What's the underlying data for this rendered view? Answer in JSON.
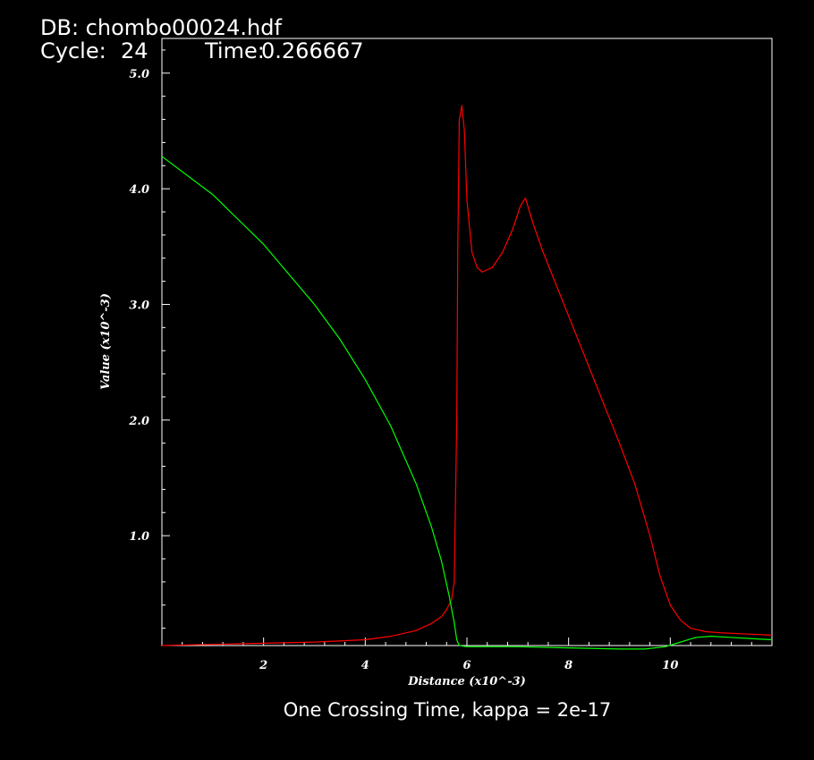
{
  "header": {
    "db_line": "DB: chombo00024.hdf",
    "cycle_label": "Cycle:",
    "cycle_value": "24",
    "time_label": "Time:",
    "time_value": "0.266667"
  },
  "caption": "One Crossing Time, kappa = 2e-17",
  "colors": {
    "background": "#000000",
    "axes": "#ffffff",
    "series_red": "#ff0000",
    "series_green": "#00ff00"
  },
  "chart_data": {
    "type": "line",
    "title": "",
    "xlabel": "Distance (x10^-3)",
    "ylabel": "Value (x10^-3)",
    "xlim": [
      0,
      12
    ],
    "ylim": [
      0.05,
      5.3
    ],
    "x_ticks": [
      2,
      4,
      6,
      8,
      10
    ],
    "x_tick_labels": [
      "2",
      "4",
      "6",
      "8",
      "10"
    ],
    "y_ticks": [
      1.0,
      2.0,
      3.0,
      4.0,
      5.0
    ],
    "y_tick_labels": [
      "1.0",
      "2.0",
      "3.0",
      "4.0",
      "5.0"
    ],
    "grid": false,
    "series": [
      {
        "color": "#ff0000",
        "x": [
          0.0,
          1.0,
          2.0,
          3.0,
          4.0,
          4.5,
          5.0,
          5.3,
          5.5,
          5.6,
          5.7,
          5.75,
          5.8,
          5.82,
          5.85,
          5.9,
          5.95,
          6.0,
          6.1,
          6.2,
          6.3,
          6.5,
          6.7,
          6.9,
          7.05,
          7.15,
          7.3,
          7.5,
          8.0,
          8.5,
          9.0,
          9.3,
          9.6,
          9.8,
          10.0,
          10.2,
          10.4,
          10.7,
          11.0,
          11.5,
          12.0
        ],
        "y": [
          0.05,
          0.06,
          0.07,
          0.08,
          0.1,
          0.13,
          0.18,
          0.24,
          0.3,
          0.36,
          0.45,
          0.6,
          2.0,
          3.5,
          4.6,
          4.72,
          4.5,
          3.9,
          3.45,
          3.32,
          3.28,
          3.32,
          3.45,
          3.65,
          3.85,
          3.92,
          3.7,
          3.45,
          2.9,
          2.35,
          1.8,
          1.45,
          1.0,
          0.65,
          0.4,
          0.27,
          0.2,
          0.17,
          0.16,
          0.15,
          0.14
        ]
      },
      {
        "color": "#00ff00",
        "x": [
          0.0,
          1.0,
          2.0,
          3.0,
          3.5,
          4.0,
          4.5,
          5.0,
          5.3,
          5.5,
          5.65,
          5.75,
          5.8,
          5.85,
          6.0,
          7.0,
          8.0,
          9.0,
          9.5,
          9.9,
          10.2,
          10.5,
          10.8,
          11.2,
          11.6,
          12.0
        ],
        "y": [
          4.28,
          3.95,
          3.52,
          3.0,
          2.7,
          2.35,
          1.95,
          1.45,
          1.08,
          0.78,
          0.48,
          0.25,
          0.1,
          0.05,
          0.04,
          0.04,
          0.03,
          0.02,
          0.02,
          0.04,
          0.08,
          0.12,
          0.13,
          0.12,
          0.11,
          0.1
        ]
      }
    ]
  }
}
